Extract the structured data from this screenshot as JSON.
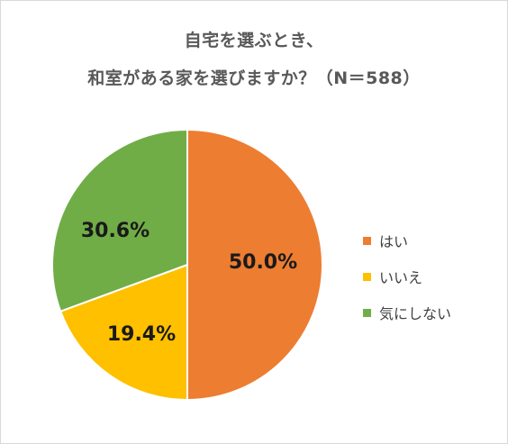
{
  "title": {
    "line1": "自宅を選ぶとき、",
    "line2": "和室がある家を選びますか？（N＝588）"
  },
  "chart_data": {
    "type": "pie",
    "title": "自宅を選ぶとき、和室がある家を選びますか？（N＝588）",
    "slices": [
      {
        "label": "はい",
        "value": 50.0,
        "value_label": "50.0%",
        "color": "#ED7D31"
      },
      {
        "label": "いいえ",
        "value": 19.4,
        "value_label": "19.4%",
        "color": "#FFC000"
      },
      {
        "label": "気にしない",
        "value": 30.6,
        "value_label": "30.6%",
        "color": "#70AD47"
      }
    ],
    "legend_placement": "right"
  }
}
